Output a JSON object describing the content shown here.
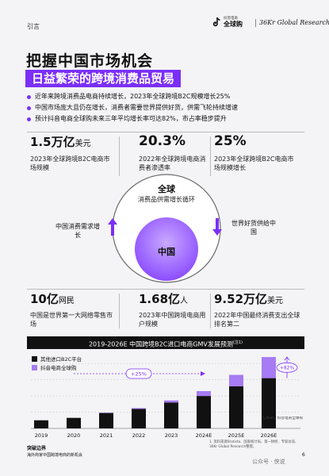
{
  "header": {
    "tag": "引言",
    "logo_small": "抖音电商",
    "logo_main": "全球购",
    "logo_partner": "36Kr Global Research"
  },
  "title": "把握中国市场机会",
  "subtitle": "日益繁荣的跨境消费品贸易",
  "bullets": [
    "近年来跨境消费品电商持续增长，2023年全球跨境B2C规模增长25%",
    "中国市场庞大且仍在增长，消费者需要世界提供好货，供需飞轮持续增速",
    "预计抖音电商全球购未来三年平均增长率可达82%，市占率稳步提升"
  ],
  "top_stats": [
    {
      "num": "1.5万亿",
      "unit": "美元",
      "desc": "2023年全球跨境B2C电商市场规模"
    },
    {
      "num": "20.3%",
      "unit": "",
      "desc": "2022年全球跨境电商消费者渗透率"
    },
    {
      "num": "25%",
      "unit": "",
      "desc": "2023年全球跨境B2C电商市场规模增长"
    }
  ],
  "diagram": {
    "global": "全球",
    "global_sub": "消费品供需增长循环",
    "china": "中国",
    "left": "中国消费需求增长",
    "right": "世界好货供给中国"
  },
  "bottom_stats": [
    {
      "num": "10亿",
      "unit": "网民",
      "desc": "中国是世界第一大网络零售市场"
    },
    {
      "num": "1.68亿",
      "unit": "人",
      "desc": "2023年中国跨境电商用户规模"
    },
    {
      "num": "9.52万亿",
      "unit": "美元",
      "desc": "2022年中国最终消费支出全球排名第二"
    }
  ],
  "chart_head": "2019-2026E 中国跨境B2C进口电商GMV发展预测",
  "chart_head_note": "(注1)",
  "chart_data": {
    "type": "bar",
    "stacked": true,
    "categories": [
      "2019",
      "2020",
      "2021",
      "2022",
      "2023",
      "2024E",
      "2025E",
      "2026E"
    ],
    "series": [
      {
        "name": "其他进口B2C平台",
        "color": "#111111",
        "values": [
          10,
          13,
          19,
          24,
          32,
          40,
          52,
          62
        ]
      },
      {
        "name": "抖音电商全球购",
        "color": "#a77bf3",
        "values": [
          0,
          0,
          0.4,
          1,
          2.5,
          6,
          14,
          26
        ]
      }
    ],
    "annotations": [
      {
        "label": "+25%",
        "from": "2020",
        "to": "2024E"
      },
      {
        "label": "+82%",
        "category": "2026E"
      }
    ],
    "cagr_note": "CAGR，抖音电商全球购"
  },
  "footer": {
    "source_title": "突破边界",
    "source_sub": "海外商家中国跨境电商的新机会",
    "note": "1. 资料来源Statista、国家统计局、第一财经、专家访谈、36Kr Global Research整理，",
    "page": "6",
    "watermark": "公众号 · 侠说"
  }
}
